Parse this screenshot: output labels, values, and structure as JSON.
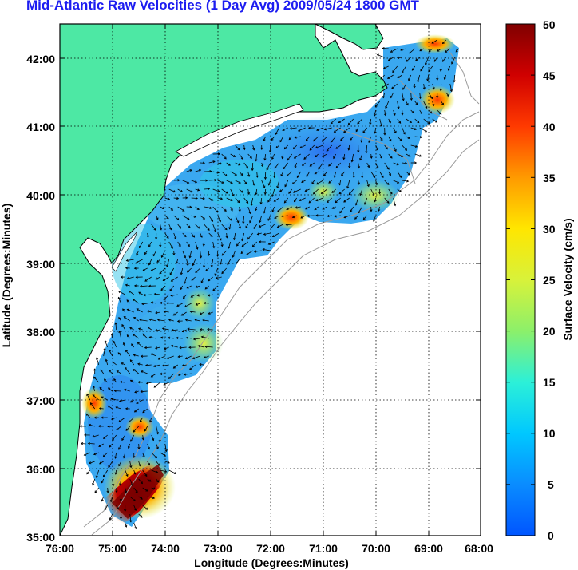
{
  "title": "Mid-Atlantic Raw Velocities (1 Day Avg) 2009/05/24 1800 GMT",
  "xlabel": "Longitude (Degrees:Minutes)",
  "ylabel": "Latitude (Degrees:Minutes)",
  "x_ticks": [
    "76:00",
    "75:00",
    "74:00",
    "73:00",
    "72:00",
    "71:00",
    "70:00",
    "69:00",
    "68:00"
  ],
  "y_ticks": [
    "42:00",
    "41:00",
    "40:00",
    "39:00",
    "38:00",
    "37:00",
    "36:00",
    "35:00"
  ],
  "colorbar": {
    "label": "Surface Velocity (cm/s)",
    "ticks": [
      "50",
      "45",
      "40",
      "35",
      "30",
      "25",
      "20",
      "15",
      "10",
      "5",
      "0"
    ],
    "min": 0,
    "max": 50
  },
  "colors": {
    "land": "#4de8a4",
    "title": "#1d1df0",
    "ocean_background": "#ffffff",
    "grid": "#000000"
  }
}
